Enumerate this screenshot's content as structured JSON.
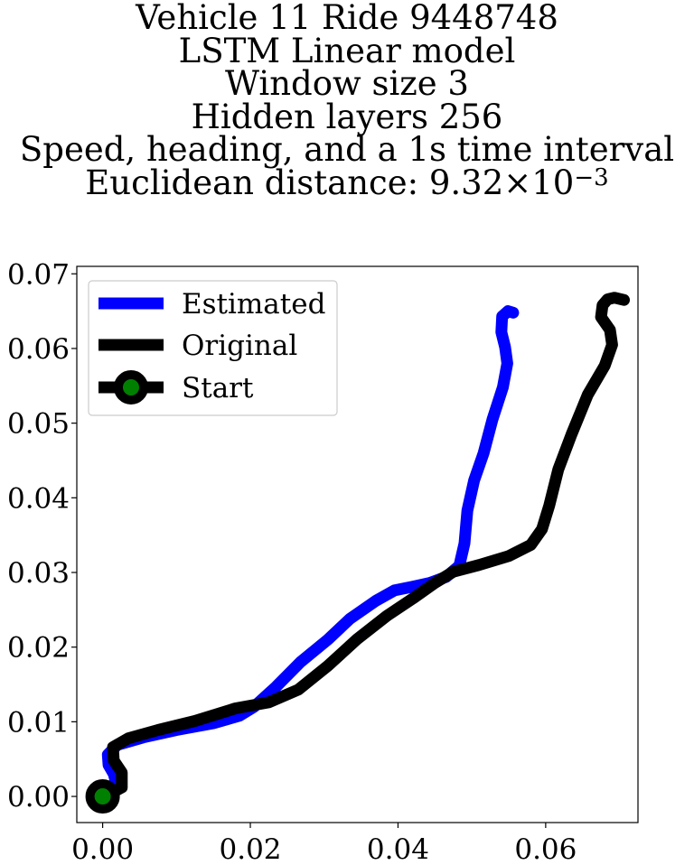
{
  "title": {
    "line1": "Vehicle 11 Ride 9448748",
    "line2": "LSTM Linear model",
    "line3": "Window size 3",
    "line4": "Hidden layers 256",
    "line5": "Speed, heading, and a 1s time interval",
    "line6_prefix": "Euclidean distance: 9.32",
    "line6_times": "×",
    "line6_base": "10",
    "line6_exp": "−3"
  },
  "chart_data": {
    "type": "line",
    "xlim": [
      -0.0035,
      0.0725
    ],
    "ylim": [
      -0.0035,
      0.071
    ],
    "xticks": [
      {
        "value": 0.0,
        "label": "0.00"
      },
      {
        "value": 0.02,
        "label": "0.02"
      },
      {
        "value": 0.04,
        "label": "0.04"
      },
      {
        "value": 0.06,
        "label": "0.06"
      }
    ],
    "yticks": [
      {
        "value": 0.0,
        "label": "0.00"
      },
      {
        "value": 0.01,
        "label": "0.01"
      },
      {
        "value": 0.02,
        "label": "0.02"
      },
      {
        "value": 0.03,
        "label": "0.03"
      },
      {
        "value": 0.04,
        "label": "0.04"
      },
      {
        "value": 0.05,
        "label": "0.05"
      },
      {
        "value": 0.06,
        "label": "0.06"
      },
      {
        "value": 0.07,
        "label": "0.07"
      }
    ],
    "grid": false,
    "legend_position": "upper-left",
    "series": [
      {
        "name": "Estimated",
        "color": "#0000ff",
        "points": [
          [
            0.0,
            0.0
          ],
          [
            0.0009,
            0.0006
          ],
          [
            0.0019,
            0.0015
          ],
          [
            0.0015,
            0.003
          ],
          [
            0.0008,
            0.0042
          ],
          [
            0.0007,
            0.0056
          ],
          [
            0.002,
            0.0069
          ],
          [
            0.0055,
            0.0079
          ],
          [
            0.01,
            0.0089
          ],
          [
            0.015,
            0.0098
          ],
          [
            0.0185,
            0.0108
          ],
          [
            0.0205,
            0.012
          ],
          [
            0.0235,
            0.0147
          ],
          [
            0.0268,
            0.018
          ],
          [
            0.0305,
            0.021
          ],
          [
            0.0335,
            0.0238
          ],
          [
            0.037,
            0.0262
          ],
          [
            0.0395,
            0.0276
          ],
          [
            0.042,
            0.0281
          ],
          [
            0.0443,
            0.0286
          ],
          [
            0.0465,
            0.0294
          ],
          [
            0.0483,
            0.0309
          ],
          [
            0.049,
            0.0339
          ],
          [
            0.0494,
            0.0383
          ],
          [
            0.0503,
            0.0423
          ],
          [
            0.0516,
            0.046
          ],
          [
            0.0528,
            0.0505
          ],
          [
            0.0542,
            0.0548
          ],
          [
            0.0548,
            0.058
          ],
          [
            0.0545,
            0.0602
          ],
          [
            0.054,
            0.0622
          ],
          [
            0.0541,
            0.0643
          ],
          [
            0.0549,
            0.065
          ],
          [
            0.0556,
            0.0648
          ]
        ]
      },
      {
        "name": "Original",
        "color": "#000000",
        "points": [
          [
            0.0,
            0.0
          ],
          [
            0.0011,
            0.0004
          ],
          [
            0.0026,
            0.0012
          ],
          [
            0.0026,
            0.0032
          ],
          [
            0.0015,
            0.0048
          ],
          [
            0.0014,
            0.0066
          ],
          [
            0.0035,
            0.0078
          ],
          [
            0.0075,
            0.0089
          ],
          [
            0.0125,
            0.0101
          ],
          [
            0.018,
            0.0118
          ],
          [
            0.0225,
            0.0126
          ],
          [
            0.0265,
            0.0143
          ],
          [
            0.0305,
            0.0175
          ],
          [
            0.0345,
            0.0211
          ],
          [
            0.0385,
            0.0242
          ],
          [
            0.042,
            0.0265
          ],
          [
            0.045,
            0.0286
          ],
          [
            0.0475,
            0.0301
          ],
          [
            0.051,
            0.031
          ],
          [
            0.055,
            0.0322
          ],
          [
            0.058,
            0.0337
          ],
          [
            0.0595,
            0.0358
          ],
          [
            0.0605,
            0.039
          ],
          [
            0.0617,
            0.0438
          ],
          [
            0.0635,
            0.0485
          ],
          [
            0.0657,
            0.0538
          ],
          [
            0.068,
            0.0577
          ],
          [
            0.069,
            0.0605
          ],
          [
            0.0687,
            0.0625
          ],
          [
            0.0675,
            0.0642
          ],
          [
            0.0677,
            0.0658
          ],
          [
            0.0684,
            0.0666
          ],
          [
            0.0693,
            0.0668
          ],
          [
            0.0706,
            0.0665
          ]
        ]
      }
    ],
    "start_marker": {
      "label": "Start",
      "x": 0.0,
      "y": 0.0,
      "edge_color": "#000000",
      "face_color": "#008000"
    }
  }
}
